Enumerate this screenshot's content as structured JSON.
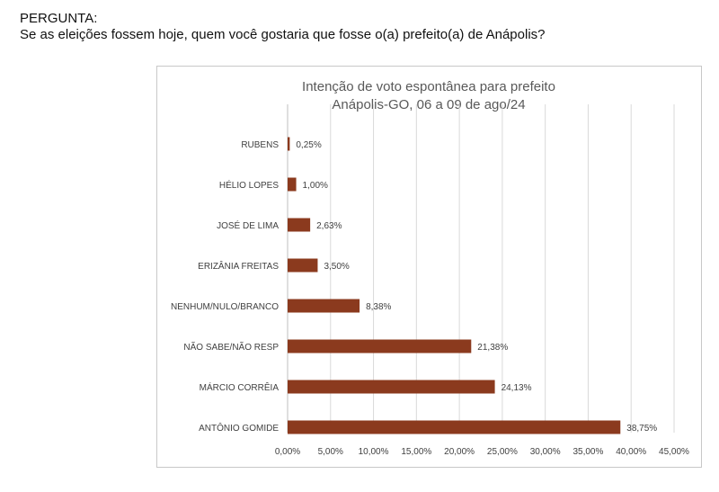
{
  "header": {
    "label": "PERGUNTA:",
    "question": "Se as eleições fossem hoje, quem você gostaria que fosse o(a) prefeito(a) de Anápolis?"
  },
  "chart_data": {
    "type": "bar",
    "orientation": "horizontal",
    "title": "Intenção de voto espontânea para prefeito",
    "subtitle": "Anápolis-GO, 06 a 09 de ago/24",
    "categories": [
      "RUBENS",
      "HÉLIO LOPES",
      "JOSÉ DE LIMA",
      "ERIZÂNIA FREITAS",
      "NENHUM/NULO/BRANCO",
      "NÃO SABE/NÃO RESP",
      "MÁRCIO CORRÊIA",
      "ANTÔNIO GOMIDE"
    ],
    "values": [
      0.25,
      1.0,
      2.63,
      3.5,
      8.38,
      21.38,
      24.13,
      38.75
    ],
    "value_labels": [
      "0,25%",
      "1,00%",
      "2,63%",
      "3,50%",
      "8,38%",
      "21,38%",
      "24,13%",
      "38,75%"
    ],
    "xlim": [
      0,
      45
    ],
    "xticks": [
      0,
      5,
      10,
      15,
      20,
      25,
      30,
      35,
      40,
      45
    ],
    "xtick_labels": [
      "0,00%",
      "5,00%",
      "10,00%",
      "15,00%",
      "20,00%",
      "25,00%",
      "30,00%",
      "35,00%",
      "40,00%",
      "45,00%"
    ],
    "grid": true,
    "bar_color": "#8b3a1e",
    "grid_color": "#d9d9d9"
  }
}
